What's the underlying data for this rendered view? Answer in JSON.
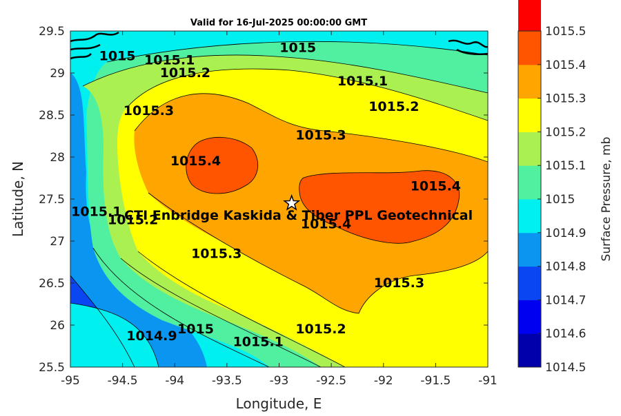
{
  "chart_data": {
    "type": "contour",
    "title": "Valid for 16-Jul-2025 00:00:00 GMT",
    "xlabel": "Longitude, E",
    "ylabel": "Latitude, N",
    "xlim": [
      -95,
      -91
    ],
    "ylim": [
      25.5,
      29.5
    ],
    "xticks": [
      "-95",
      "-94.5",
      "-94",
      "-93.5",
      "-93",
      "-92.5",
      "-92",
      "-91.5",
      "-91"
    ],
    "yticks": [
      "25.5",
      "26",
      "26.5",
      "27",
      "27.5",
      "28",
      "28.5",
      "29",
      "29.5"
    ],
    "colorbar": {
      "label": "Surface Pressure, mb",
      "levels": [
        "1014.5",
        "1014.6",
        "1014.7",
        "1014.8",
        "1014.9",
        "1015",
        "1015.1",
        "1015.2",
        "1015.3",
        "1015.4",
        "1015.5"
      ],
      "colors": [
        "#0000aa",
        "#0000f0",
        "#0a46f2",
        "#0a96f0",
        "#00f0f0",
        "#50f0a0",
        "#aaf050",
        "#ffff00",
        "#ffa500",
        "#ff5500",
        "#ff0000"
      ]
    },
    "contour_labels": [
      {
        "text": "1015",
        "lon": -94.55,
        "lat": 29.2
      },
      {
        "text": "1015.1",
        "lon": -94.05,
        "lat": 29.15
      },
      {
        "text": "1015.2",
        "lon": -93.9,
        "lat": 29.0
      },
      {
        "text": "1015.3",
        "lon": -94.25,
        "lat": 28.55
      },
      {
        "text": "1015.4",
        "lon": -93.8,
        "lat": 27.95
      },
      {
        "text": "1015",
        "lon": -92.82,
        "lat": 29.3
      },
      {
        "text": "1015.1",
        "lon": -92.2,
        "lat": 28.9
      },
      {
        "text": "1015.2",
        "lon": -91.9,
        "lat": 28.6
      },
      {
        "text": "1015.3",
        "lon": -92.6,
        "lat": 28.26
      },
      {
        "text": "1015.4",
        "lon": -91.5,
        "lat": 27.65
      },
      {
        "text": "1015.4",
        "lon": -92.55,
        "lat": 27.2
      },
      {
        "text": "1015.1",
        "lon": -94.75,
        "lat": 27.35
      },
      {
        "text": "1015.2",
        "lon": -94.4,
        "lat": 27.25
      },
      {
        "text": "1015.3",
        "lon": -93.6,
        "lat": 26.85
      },
      {
        "text": "1015.3",
        "lon": -91.85,
        "lat": 26.5
      },
      {
        "text": "1015.2",
        "lon": -92.6,
        "lat": 25.95
      },
      {
        "text": "1015.1",
        "lon": -93.2,
        "lat": 25.8
      },
      {
        "text": "1015",
        "lon": -93.8,
        "lat": 25.95
      },
      {
        "text": "1014.9",
        "lon": -94.22,
        "lat": 25.87
      }
    ],
    "site": {
      "label": "CTI Enbridge  Kaskida & Tiber PPL Geotechnical",
      "lon": -92.88,
      "lat": 27.45
    }
  }
}
